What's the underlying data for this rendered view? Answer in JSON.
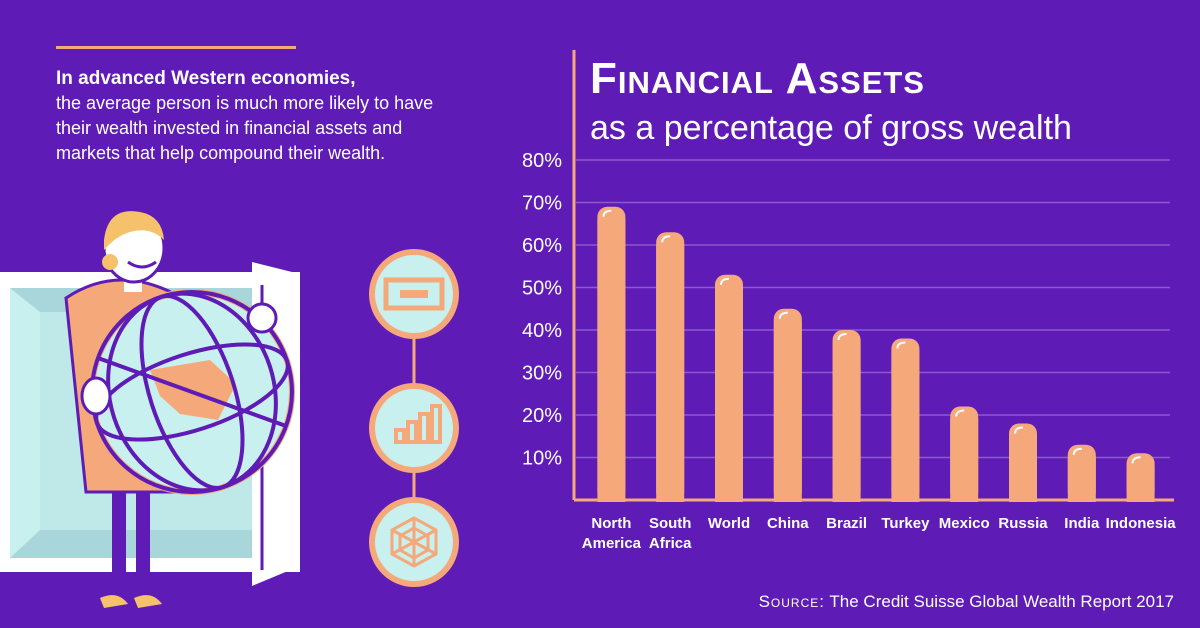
{
  "intro": {
    "lead": "In advanced Western economies,",
    "body": "the average person is much more likely to have their wealth invested in financial assets and markets that help compound their wealth."
  },
  "chart_data": {
    "type": "bar",
    "title": "Financial Assets",
    "subtitle": "as a percentage of gross wealth",
    "categories": [
      "North America",
      "South Africa",
      "World",
      "China",
      "Brazil",
      "Turkey",
      "Mexico",
      "Russia",
      "India",
      "Indonesia"
    ],
    "values": [
      69,
      63,
      53,
      45,
      40,
      38,
      22,
      18,
      13,
      11
    ],
    "ylim": [
      0,
      80
    ],
    "yticks": [
      "10%",
      "20%",
      "30%",
      "40%",
      "50%",
      "60%",
      "70%",
      "80%"
    ],
    "grid": true,
    "bar_color": "#f5a97a"
  },
  "source": {
    "label": "Source:",
    "text": "The Credit Suisse Global Wealth Report 2017"
  },
  "icons": [
    "money-icon",
    "bar-chart-icon",
    "network-icon"
  ],
  "colors": {
    "background": "#5f1bb5",
    "accent": "#f5a97a",
    "light": "#c8f0ee"
  }
}
